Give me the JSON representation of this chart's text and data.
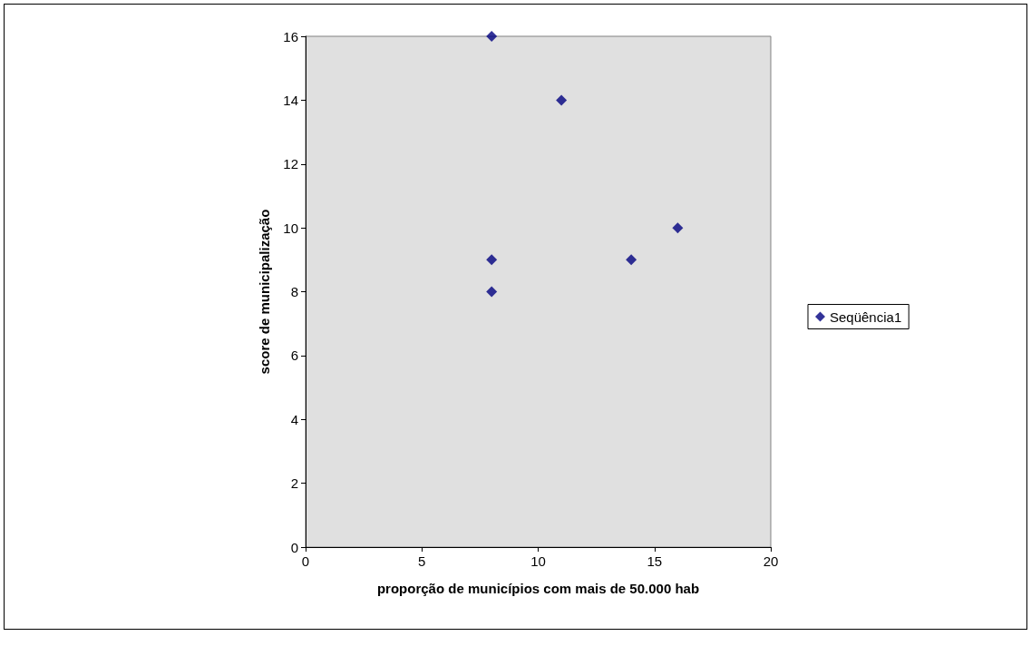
{
  "chart_data": {
    "type": "scatter",
    "xlabel": "proporção de municípios com mais de 50.000 hab",
    "ylabel": "score de municipalização",
    "x": [
      8,
      11,
      8,
      8,
      14,
      16
    ],
    "series": [
      {
        "name": "Seqüência1",
        "color": "#000080",
        "values": [
          16,
          14,
          9,
          8,
          9,
          10
        ]
      }
    ],
    "xlim": [
      0,
      20
    ],
    "xticks": [
      0,
      5,
      10,
      15,
      20
    ],
    "ylim": [
      0,
      16
    ],
    "yticks": [
      0,
      2,
      4,
      6,
      8,
      10,
      12,
      14,
      16
    ],
    "grid": false,
    "legend": "right",
    "marker": "diamond"
  }
}
